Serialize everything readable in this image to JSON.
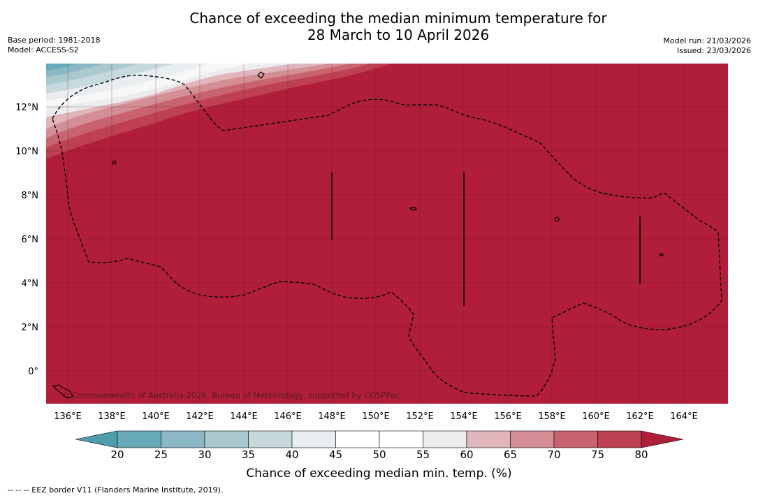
{
  "title": {
    "line1": "Chance of exceeding the median minimum temperature for",
    "line2": "28 March to 10 April 2026"
  },
  "meta_left": {
    "base_period": "Base period: 1981-2018",
    "model": "Model: ACCESS-S2"
  },
  "meta_right": {
    "model_run": "Model run: 21/03/2026",
    "issued": "Issued: 23/03/2026"
  },
  "map": {
    "lon_labels": [
      "136°E",
      "138°E",
      "140°E",
      "142°E",
      "144°E",
      "146°E",
      "148°E",
      "150°E",
      "152°E",
      "154°E",
      "156°E",
      "158°E",
      "160°E",
      "162°E",
      "164°E"
    ],
    "lat_labels": [
      "12°N",
      "10°N",
      "8°N",
      "6°N",
      "4°N",
      "2°N",
      "0°"
    ],
    "copyright": "© Commonwealth of Australia 2026, Bureau of Meteorology, supported by COSPPac",
    "background_color": "#b01e3a"
  },
  "legend": {
    "ticks": [
      "20",
      "25",
      "30",
      "35",
      "40",
      "45",
      "50",
      "55",
      "60",
      "65",
      "70",
      "75",
      "80"
    ],
    "colors": [
      "#67abb8",
      "#8bb8c4",
      "#a9c9cf",
      "#c8d9de",
      "#e9eff1",
      "#ffffff",
      "#ffffff",
      "#ececec",
      "#e0b6bc",
      "#d48e96",
      "#c96370",
      "#be4152"
    ],
    "low_arrow_color": "#4e9ea9",
    "high_arrow_color": "#b01e3a",
    "title": "Chance of exceeding median min. temp. (%)"
  },
  "footnote": "--  --  -- EEZ border V11 (Flanders Marine Institute, 2019)."
}
